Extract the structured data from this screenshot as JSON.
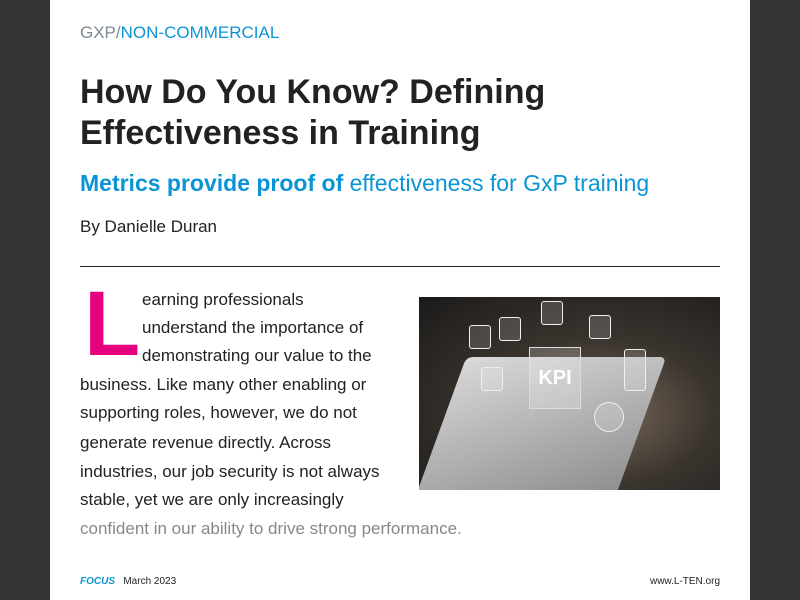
{
  "header": {
    "section_prefix": "GXP/",
    "section": "NON-COMMERCIAL"
  },
  "article": {
    "title": "How Do You Know? Defining Effectiveness in Training",
    "subtitle_bold": "Metrics provide proof of",
    "subtitle_rest": " effectiveness for GxP training",
    "byline": "By Danielle Duran",
    "drop_cap": "L",
    "lines": [
      "earning professionals",
      "understand the importance of",
      "demonstrating our value to the",
      "business. Like many other enabling or",
      "supporting roles, however, we do not",
      "generate revenue directly. Across",
      "industries, our job security is not always",
      "stable, yet we are only increasingly",
      "confident in our ability to drive strong performance."
    ],
    "image_text": "KPI"
  },
  "footer": {
    "magazine": "FOCUS",
    "date": "March 2023",
    "website": "www.L-TEN.org"
  },
  "colors": {
    "accent": "#0a94d6",
    "drop_cap": "#e6007e"
  }
}
